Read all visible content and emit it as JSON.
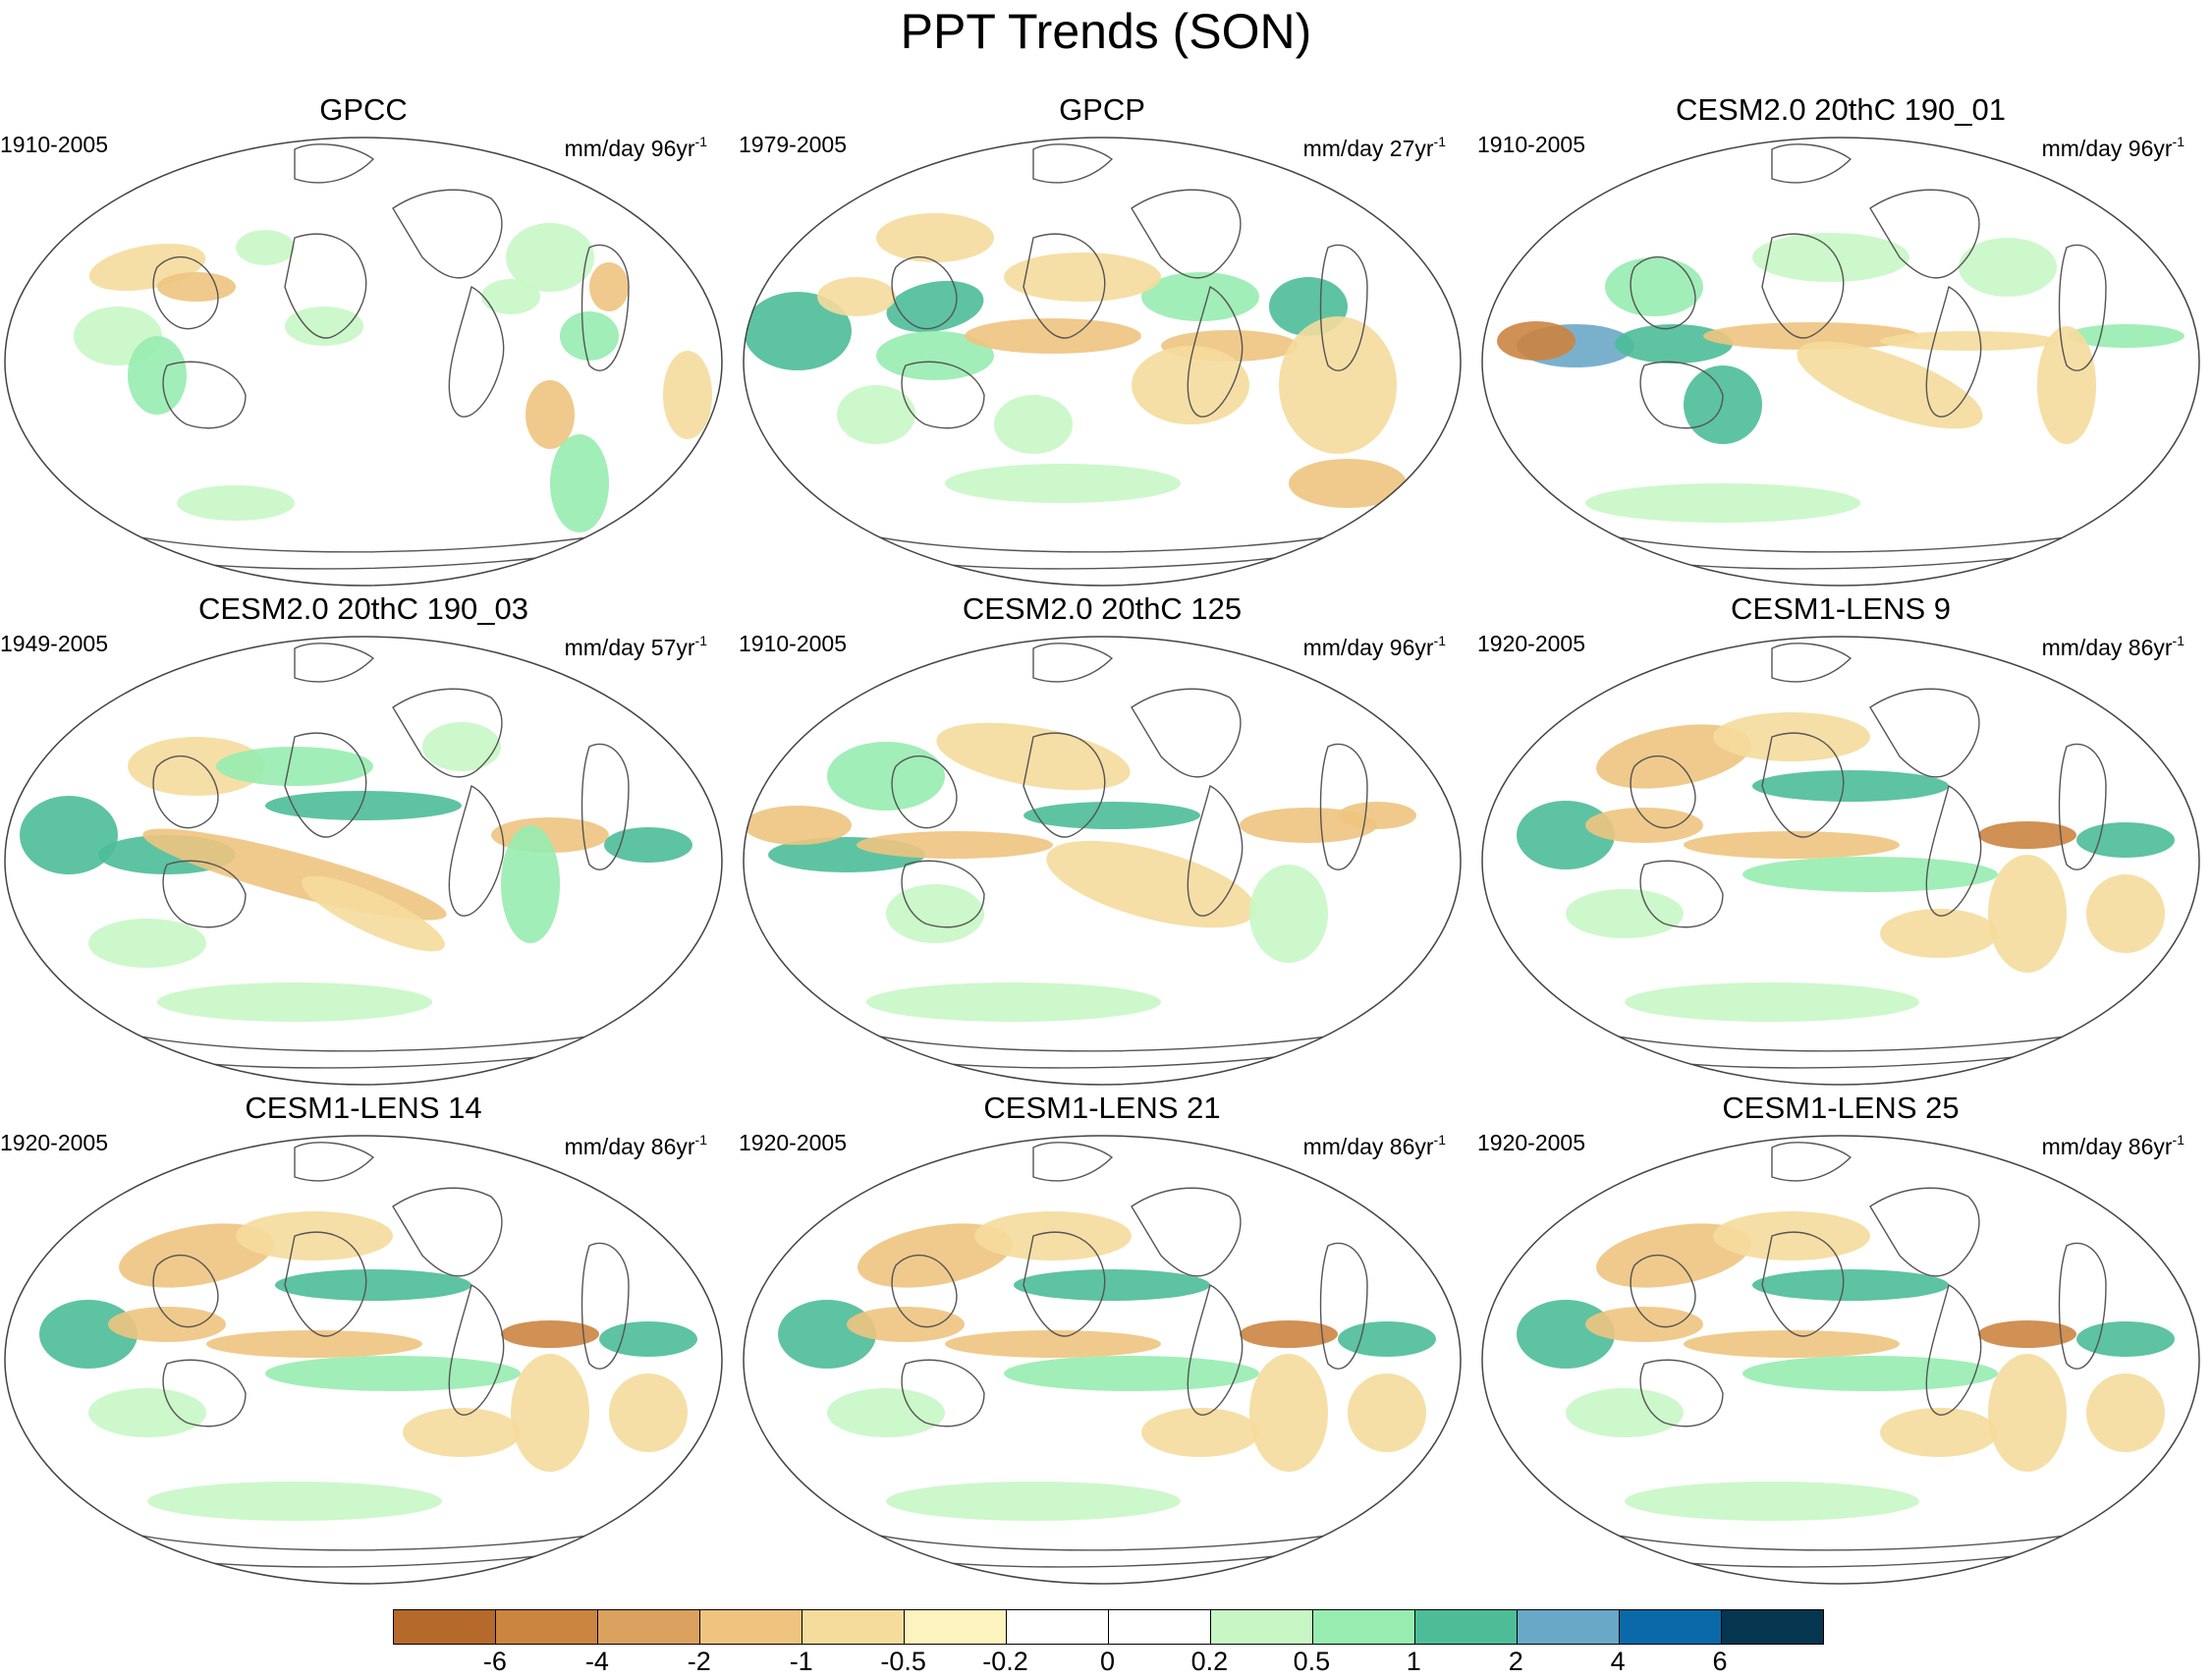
{
  "figure": {
    "title": "PPT Trends (SON)"
  },
  "panels": [
    {
      "title": "GPCC",
      "period": "1910-2005",
      "units": "mm/day 96yr",
      "units_exp": "-1",
      "pattern": "gpcc"
    },
    {
      "title": "GPCP",
      "period": "1979-2005",
      "units": "mm/day 27yr",
      "units_exp": "-1",
      "pattern": "gpcp"
    },
    {
      "title": "CESM2.0 20thC 190_01",
      "period": "1910-2005",
      "units": "mm/day 96yr",
      "units_exp": "-1",
      "pattern": "cesm2_01"
    },
    {
      "title": "CESM2.0 20thC 190_03",
      "period": "1949-2005",
      "units": "mm/day 57yr",
      "units_exp": "-1",
      "pattern": "cesm2_03"
    },
    {
      "title": "CESM2.0 20thC 125",
      "period": "1910-2005",
      "units": "mm/day 96yr",
      "units_exp": "-1",
      "pattern": "cesm2_125"
    },
    {
      "title": "CESM1-LENS 9",
      "period": "1920-2005",
      "units": "mm/day 86yr",
      "units_exp": "-1",
      "pattern": "lens"
    },
    {
      "title": "CESM1-LENS 14",
      "period": "1920-2005",
      "units": "mm/day 86yr",
      "units_exp": "-1",
      "pattern": "lens"
    },
    {
      "title": "CESM1-LENS 21",
      "period": "1920-2005",
      "units": "mm/day 86yr",
      "units_exp": "-1",
      "pattern": "lens"
    },
    {
      "title": "CESM1-LENS 25",
      "period": "1920-2005",
      "units": "mm/day 86yr",
      "units_exp": "-1",
      "pattern": "lens"
    }
  ],
  "colorbar": {
    "colors": [
      "#b5692a",
      "#cc8441",
      "#daa15f",
      "#eec47f",
      "#f5dc9c",
      "#fdf3bf",
      "#ffffff",
      "#ffffff",
      "#c8f7c5",
      "#97ecb0",
      "#4dbd98",
      "#6aa8c8",
      "#0a69a8",
      "#06354f"
    ],
    "labels": [
      "-6",
      "-4",
      "-2",
      "-1",
      "-0.5",
      "-0.2",
      "0",
      "0.2",
      "0.5",
      "1",
      "2",
      "4",
      "6"
    ]
  },
  "palette": {
    "dry_strong": "#cc8441",
    "dry": "#eec47f",
    "dry_light": "#f5dc9c",
    "wet_light": "#c8f7c5",
    "wet": "#97ecb0",
    "wet_strong": "#4dbd98",
    "wet_very": "#6aa8c8",
    "coast": "#555555"
  }
}
